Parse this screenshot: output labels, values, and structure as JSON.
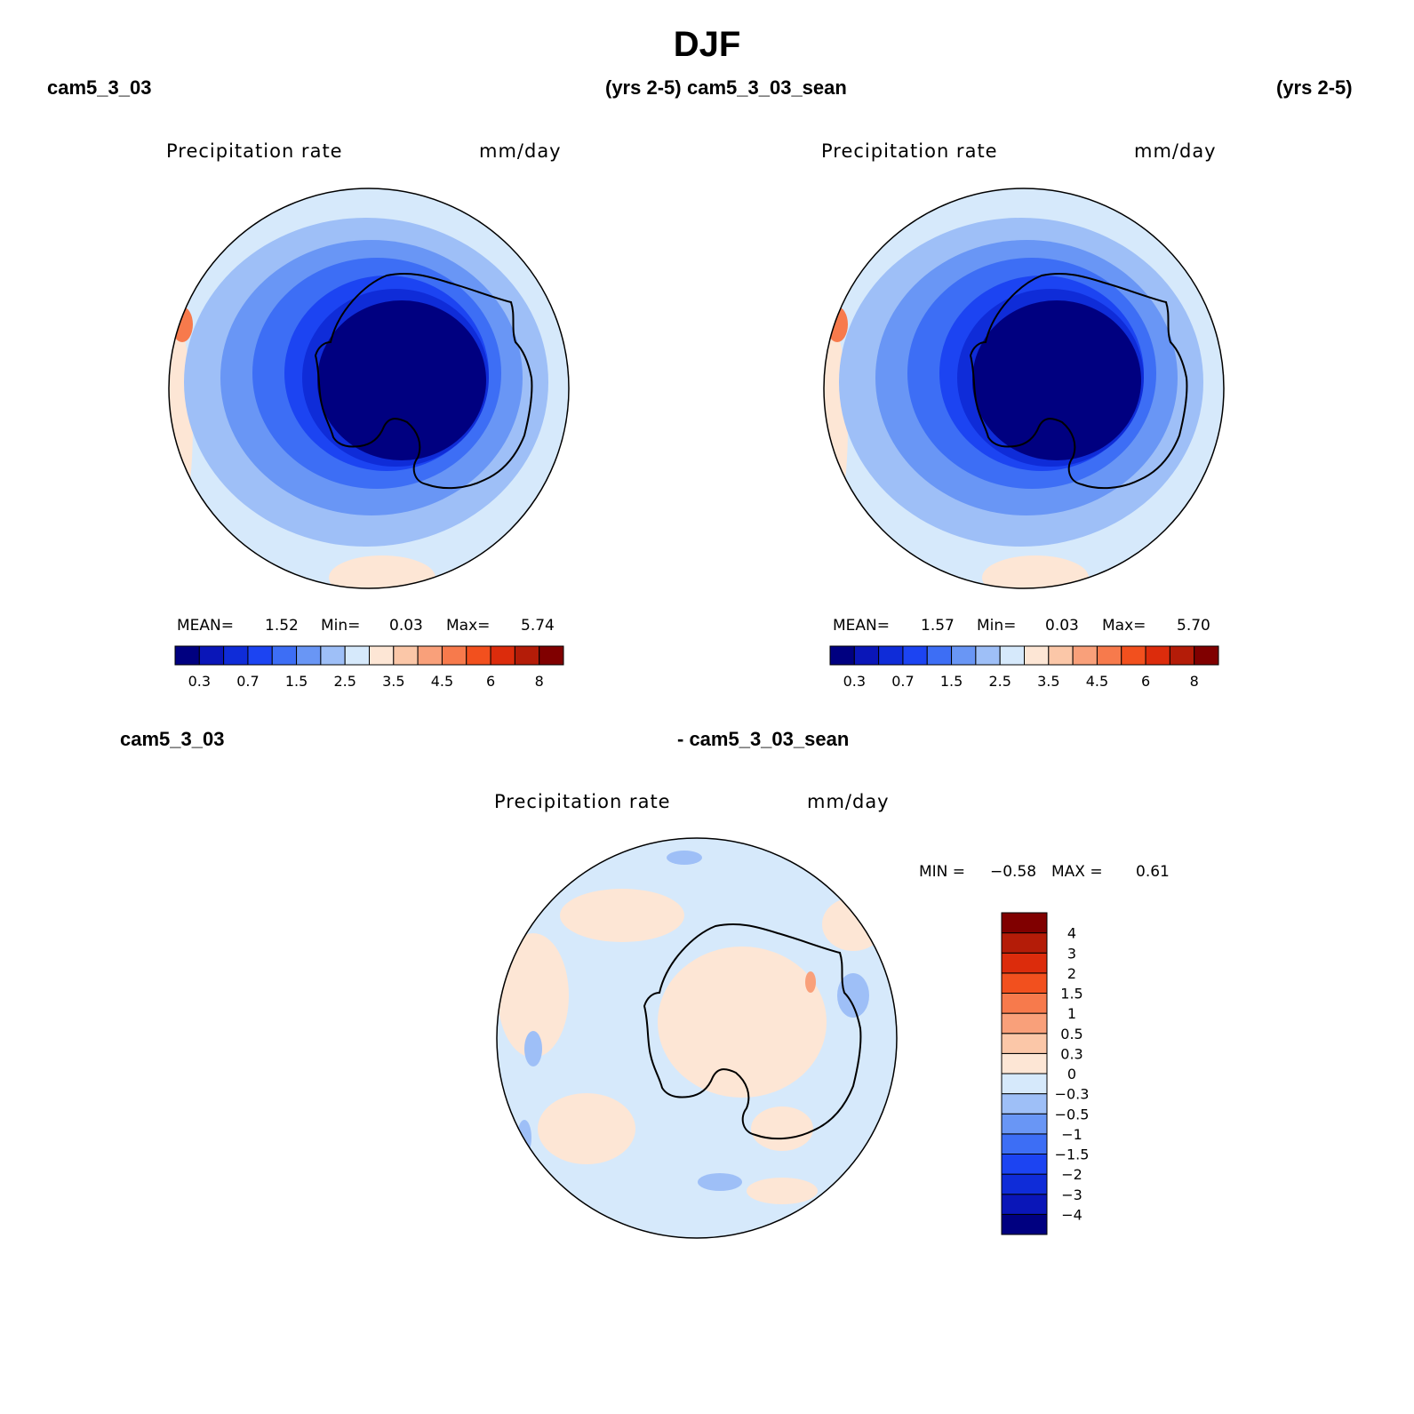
{
  "figure": {
    "title": "DJF",
    "panels": [
      {
        "case_name": "cam5_3_03",
        "years": "(yrs 2-5)",
        "variable": "Precipitation rate",
        "units": "mm/day",
        "stats": {
          "mean_label": "MEAN=",
          "mean": "1.52",
          "min_label": "Min=",
          "min": "0.03",
          "max_label": "Max=",
          "max": "5.74"
        }
      },
      {
        "case_name": "cam5_3_03_sean",
        "years": "(yrs 2-5)",
        "variable": "Precipitation rate",
        "units": "mm/day",
        "stats": {
          "mean_label": "MEAN=",
          "mean": "1.57",
          "min_label": "Min=",
          "min": "0.03",
          "max_label": "Max=",
          "max": "5.70"
        }
      },
      {
        "case_name_left": "cam5_3_03",
        "case_name_right": "- cam5_3_03_sean",
        "variable": "Precipitation rate",
        "units": "mm/day",
        "stats": {
          "min_label": "MIN =",
          "min": "−0.58",
          "max_label": "MAX =",
          "max": "0.61"
        }
      }
    ]
  },
  "colorbar_abs": {
    "colors": [
      "#000080",
      "#0a16b8",
      "#0f2cd8",
      "#1c44f2",
      "#3d6ef5",
      "#6996f5",
      "#9ebff7",
      "#d6e9fb",
      "#fde6d5",
      "#fbc7a8",
      "#f9a07a",
      "#f77a4c",
      "#f2501e",
      "#dc2c0c",
      "#b41c08",
      "#800000"
    ],
    "ticks": [
      "0.3",
      "0.7",
      "1.5",
      "2.5",
      "3.5",
      "4.5",
      "6",
      "8"
    ]
  },
  "colorbar_diff": {
    "colors": [
      "#000080",
      "#0a16b8",
      "#0f2cd8",
      "#1c44f2",
      "#3d6ef5",
      "#6996f5",
      "#9ebff7",
      "#d6e9fb",
      "#fde6d5",
      "#fbc7a8",
      "#f9a07a",
      "#f77a4c",
      "#f2501e",
      "#dc2c0c",
      "#b41c08",
      "#800000"
    ],
    "ticks": [
      "−4",
      "−3",
      "−2",
      "−1.5",
      "−1",
      "−0.5",
      "−0.3",
      "0",
      "0.3",
      "0.5",
      "1",
      "1.5",
      "2",
      "3",
      "4"
    ]
  }
}
